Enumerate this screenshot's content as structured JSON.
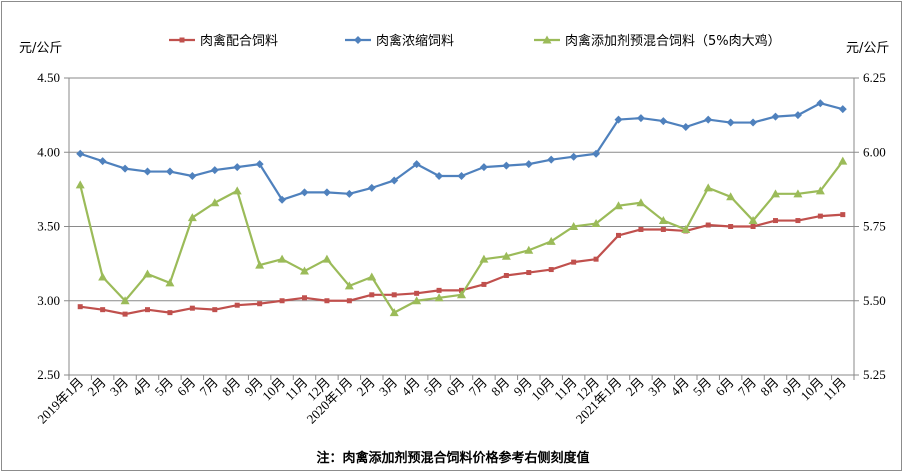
{
  "chart_data": {
    "type": "line",
    "left_unit": "元/公斤",
    "right_unit": "元/公斤",
    "note": "注：肉禽添加剂预混合饲料价格参考右侧刻度值",
    "categories": [
      "2019年1月",
      "2月",
      "3月",
      "4月",
      "5月",
      "6月",
      "7月",
      "8月",
      "9月",
      "10月",
      "11月",
      "12月",
      "2020年1月",
      "2月",
      "3月",
      "4月",
      "5月",
      "6月",
      "7月",
      "8月",
      "9月",
      "10月",
      "11月",
      "12月",
      "2021年1月",
      "2月",
      "3月",
      "4月",
      "5月",
      "6月",
      "7月",
      "8月",
      "9月",
      "10月",
      "11月"
    ],
    "y_left": {
      "min": 2.5,
      "max": 4.5,
      "ticks": [
        "2.50",
        "3.00",
        "3.50",
        "4.00",
        "4.50"
      ]
    },
    "y_right": {
      "min": 5.25,
      "max": 6.25,
      "ticks": [
        "5.25",
        "5.50",
        "5.75",
        "6.00",
        "6.25"
      ]
    },
    "grid": "horizontal",
    "legend_position": "top",
    "series": [
      {
        "name": "肉禽配合饲料",
        "axis": "left",
        "color": "#c0504d",
        "marker": "square",
        "values": [
          2.96,
          2.94,
          2.91,
          2.94,
          2.92,
          2.95,
          2.94,
          2.97,
          2.98,
          3.0,
          3.02,
          3.0,
          3.0,
          3.04,
          3.04,
          3.05,
          3.07,
          3.07,
          3.11,
          3.17,
          3.19,
          3.21,
          3.26,
          3.28,
          3.44,
          3.48,
          3.48,
          3.47,
          3.51,
          3.5,
          3.5,
          3.54,
          3.54,
          3.57,
          3.58
        ]
      },
      {
        "name": "肉禽浓缩饲料",
        "axis": "left",
        "color": "#4f81bd",
        "marker": "diamond",
        "values": [
          3.99,
          3.94,
          3.89,
          3.87,
          3.87,
          3.84,
          3.88,
          3.9,
          3.92,
          3.68,
          3.73,
          3.73,
          3.72,
          3.76,
          3.81,
          3.92,
          3.84,
          3.84,
          3.9,
          3.91,
          3.92,
          3.95,
          3.97,
          3.99,
          4.22,
          4.23,
          4.21,
          4.17,
          4.22,
          4.2,
          4.2,
          4.24,
          4.25,
          4.33,
          4.29
        ]
      },
      {
        "name": "肉禽添加剂预混合饲料（5%肉大鸡）",
        "axis": "right",
        "color": "#9bbb59",
        "marker": "triangle",
        "values": [
          5.89,
          5.58,
          5.5,
          5.59,
          5.56,
          5.78,
          5.83,
          5.87,
          5.62,
          5.64,
          5.6,
          5.64,
          5.55,
          5.58,
          5.46,
          5.5,
          5.51,
          5.52,
          5.64,
          5.65,
          5.67,
          5.7,
          5.75,
          5.76,
          5.82,
          5.83,
          5.77,
          5.74,
          5.88,
          5.85,
          5.77,
          5.86,
          5.86,
          5.87,
          5.97
        ]
      }
    ]
  }
}
